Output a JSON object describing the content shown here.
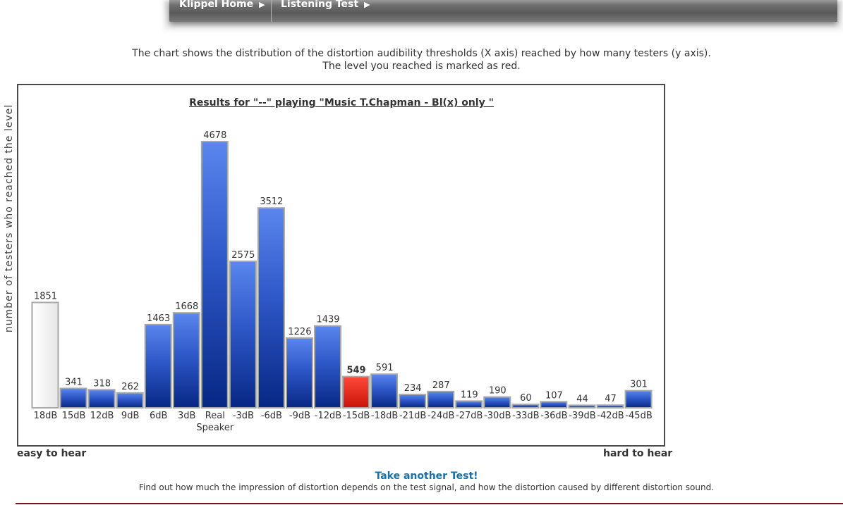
{
  "nav": {
    "items": [
      "Klippel Home",
      "Listening Test"
    ],
    "arrow": "▶"
  },
  "description": {
    "line1": "The chart shows the distribution of the distortion audibility thresholds (X axis) reached by how many testers (y axis).",
    "line2": "The level you reached is marked as red."
  },
  "chart_data": {
    "type": "bar",
    "title": "Results for \"--\" playing \"Music T.Chapman - Bl(x) only \"",
    "xlabel": "",
    "ylabel": "number of testers who reached the level",
    "categories": [
      "18dB",
      "15dB",
      "12dB",
      "9dB",
      "6dB",
      "3dB",
      "Real Speaker",
      "-3dB",
      "-6dB",
      "-9dB",
      "-12dB",
      "-15dB",
      "-18dB",
      "-21dB",
      "-24dB",
      "-27dB",
      "-30dB",
      "-33dB",
      "-36dB",
      "-39dB",
      "-42dB",
      "-45dB"
    ],
    "values": [
      1851,
      341,
      318,
      262,
      1463,
      1668,
      4678,
      2575,
      3512,
      1226,
      1439,
      549,
      591,
      234,
      287,
      119,
      190,
      60,
      107,
      44,
      47,
      301
    ],
    "highlight_index": 11,
    "first_bar_style": "light",
    "ylim": [
      0,
      4678
    ],
    "grid": false,
    "colors": {
      "bar": "#2a56c6",
      "bar_dark": "#0a2a86",
      "highlight": "#e8281c",
      "light_bar": "#f0f0f0"
    },
    "x_end_labels": {
      "left": "easy to hear",
      "right": "hard to hear"
    }
  },
  "footer": {
    "link": "Take another Test!",
    "text": "Find out how much the impression of distortion depends on the test signal, and how the distortion caused by different distortion sound."
  }
}
